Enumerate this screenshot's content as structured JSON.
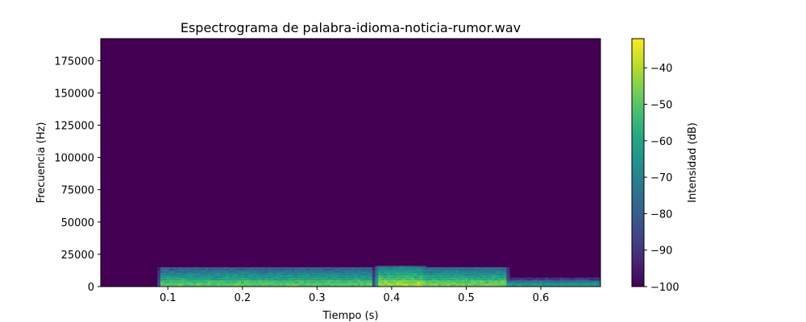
{
  "chart_data": {
    "type": "heatmap",
    "title": "Espectrograma de palabra-idioma-noticia-rumor.wav",
    "xlabel": "Tiempo (s)",
    "ylabel": "Frecuencia (Hz)",
    "colorbar_label": "Intensidad (dB)",
    "xlim": [
      0.01,
      0.68
    ],
    "ylim": [
      0,
      192000
    ],
    "xticks": [
      "0.1",
      "0.2",
      "0.3",
      "0.4",
      "0.5",
      "0.6"
    ],
    "yticks": [
      "0",
      "25000",
      "50000",
      "75000",
      "100000",
      "125000",
      "150000",
      "175000"
    ],
    "colorbar_range": [
      -100,
      -32
    ],
    "colorbar_ticks": [
      "−100",
      "−90",
      "−80",
      "−70",
      "−60",
      "−50",
      "−40"
    ],
    "colormap": "viridis",
    "background_level_db": -100,
    "energy_regions": [
      {
        "t_start": 0.09,
        "t_end": 0.37,
        "f_max": 14000,
        "peak_db": -48
      },
      {
        "t_start": 0.38,
        "t_end": 0.44,
        "f_max": 15000,
        "peak_db": -40
      },
      {
        "t_start": 0.44,
        "t_end": 0.55,
        "f_max": 14000,
        "peak_db": -45
      },
      {
        "t_start": 0.55,
        "t_end": 0.68,
        "f_max": 6000,
        "peak_db": -60
      }
    ]
  }
}
